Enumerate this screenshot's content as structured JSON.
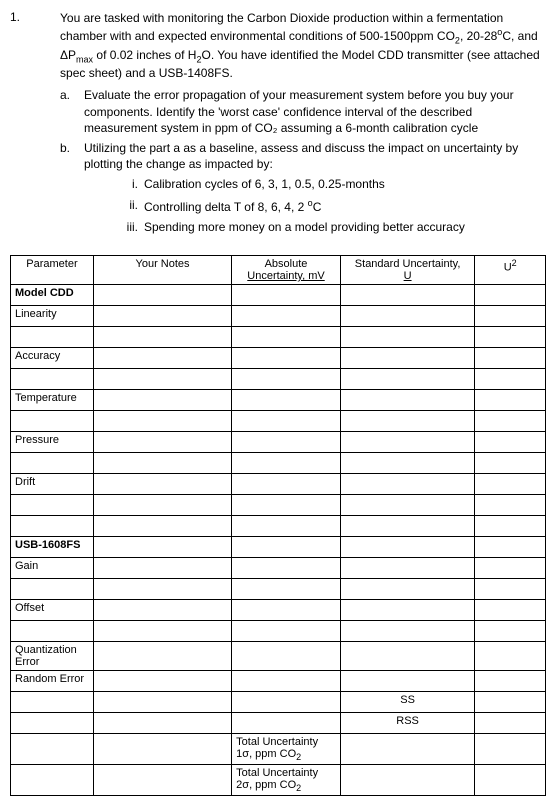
{
  "problem": {
    "number": "1.",
    "text_parts": [
      "You are tasked with monitoring the Carbon Dioxide production within a fermentation chamber with and expected environmental conditions of 500-1500ppm CO",
      "2",
      ", 20-28",
      "o",
      "C, and ΔP",
      "max",
      " of 0.02 inches of H",
      "2",
      "O. You have identified the Model CDD transmitter (see attached spec sheet) and a USB-1408FS."
    ]
  },
  "sub_a": {
    "letter": "a.",
    "text": "Evaluate the error propagation of your measurement system before you buy your components. Identify the 'worst case' confidence interval of the described measurement system in ppm of CO₂ assuming a 6-month calibration cycle"
  },
  "sub_b": {
    "letter": "b.",
    "text": "Utilizing the part a as a baseline, assess and discuss the impact on uncertainty by plotting the change as impacted by:"
  },
  "subsub_i": {
    "roman": "i.",
    "text": "Calibration cycles of 6, 3, 1, 0.5, 0.25-months"
  },
  "subsub_ii": {
    "roman": "ii.",
    "text_pre": "Controlling delta T of 8, 6, 4, 2 ",
    "text_sup": "o",
    "text_post": "C"
  },
  "subsub_iii": {
    "roman": "iii.",
    "text": "Spending more money on a model providing better accuracy"
  },
  "table": {
    "headers": {
      "param": "Parameter",
      "notes": "Your Notes",
      "abs_line1": "Absolute",
      "abs_line2": "Uncertainty, mV",
      "std_line1": "Standard Uncertainty,",
      "std_line2": "U",
      "u2": "U",
      "u2_sup": "2"
    },
    "model_cdd": "Model CDD",
    "linearity": "Linearity",
    "accuracy": "Accuracy",
    "temperature": "Temperature",
    "pressure": "Pressure",
    "drift": "Drift",
    "usb": "USB-1608FS",
    "gain": "Gain",
    "offset": "Offset",
    "quant_error": "Quantization Error",
    "random_error": "Random Error",
    "ss": "SS",
    "rss": "RSS",
    "total_1_pre": "Total Uncertainty 1σ, ppm CO",
    "total_1_sub": "2",
    "total_2_pre": "Total Uncertainty 2σ, ppm CO",
    "total_2_sub": "2"
  }
}
